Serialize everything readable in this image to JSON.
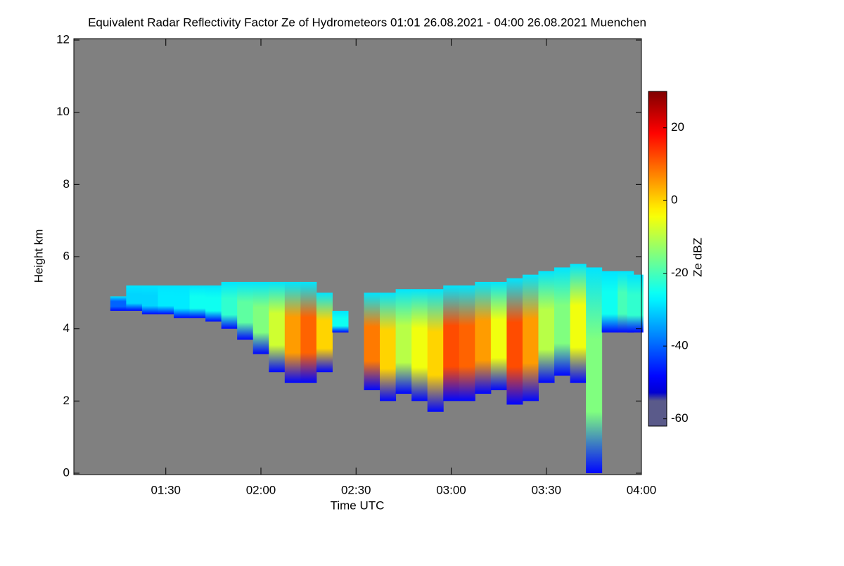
{
  "chart_data": {
    "type": "heatmap",
    "title": "Equivalent Radar Reflectivity Factor Ze of Hydrometeors   01:01 26.08.2021 - 04:00 26.08.2021 Muenchen",
    "x_label": "Time UTC",
    "y_label": "Height km",
    "colorbar_label": "Ze dBZ",
    "x": [
      75,
      80,
      85,
      90,
      95,
      100,
      105,
      110,
      115,
      120,
      125,
      130,
      135,
      140,
      145,
      150,
      155,
      160,
      165,
      170,
      175,
      180,
      185,
      190,
      195,
      200,
      205,
      210,
      215,
      220,
      225,
      230,
      235,
      238
    ],
    "echo_base": [
      4.5,
      4.5,
      4.4,
      4.4,
      4.3,
      4.3,
      4.2,
      4.0,
      3.7,
      3.3,
      2.8,
      2.5,
      2.5,
      2.8,
      3.9,
      null,
      2.3,
      2.0,
      2.2,
      2.0,
      1.7,
      2.0,
      2.0,
      2.2,
      2.3,
      1.9,
      2.0,
      2.5,
      2.7,
      2.5,
      0,
      3.9,
      3.9,
      3.9
    ],
    "echo_top": [
      4.9,
      5.2,
      5.2,
      5.2,
      5.2,
      5.2,
      5.2,
      5.3,
      5.3,
      5.3,
      5.3,
      5.3,
      5.3,
      5.0,
      4.5,
      null,
      5.0,
      5.0,
      5.1,
      5.1,
      5.1,
      5.2,
      5.2,
      5.3,
      5.3,
      5.4,
      5.5,
      5.6,
      5.7,
      5.8,
      5.7,
      5.6,
      5.6,
      5.5
    ],
    "peak_dbz": [
      -40,
      -30,
      -30,
      -28,
      -28,
      -25,
      -25,
      -22,
      -18,
      -15,
      -8,
      5,
      10,
      0,
      -25,
      null,
      8,
      0,
      -10,
      -5,
      0,
      12,
      10,
      5,
      -5,
      12,
      5,
      -10,
      -15,
      -5,
      -15,
      -25,
      -20,
      -22
    ],
    "xlim": [
      61,
      240
    ],
    "xticks": [
      {
        "value": 90,
        "label": "01:30"
      },
      {
        "value": 120,
        "label": "02:00"
      },
      {
        "value": 150,
        "label": "02:30"
      },
      {
        "value": 180,
        "label": "03:00"
      },
      {
        "value": 210,
        "label": "03:30"
      },
      {
        "value": 240,
        "label": "04:00"
      }
    ],
    "ylim": [
      0,
      12
    ],
    "yticks": [
      0,
      2,
      4,
      6,
      8,
      10,
      12
    ],
    "clim": [
      -62,
      30
    ],
    "cticks": [
      -60,
      -40,
      -20,
      0,
      20
    ],
    "background": "#808080",
    "colormap": "jet"
  }
}
